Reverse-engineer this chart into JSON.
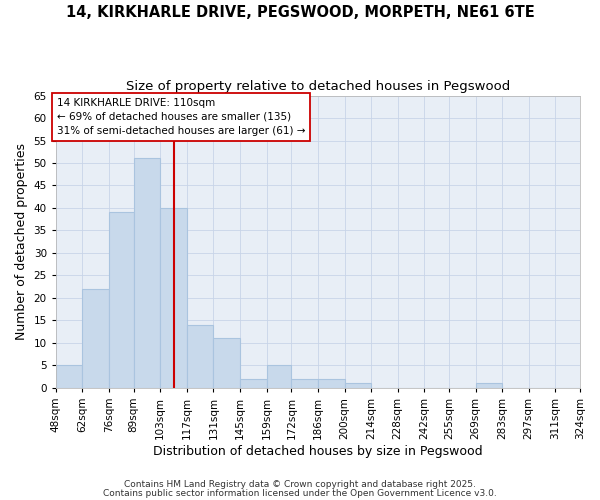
{
  "title_line1": "14, KIRKHARLE DRIVE, PEGSWOOD, MORPETH, NE61 6TE",
  "title_line2": "Size of property relative to detached houses in Pegswood",
  "bin_labels": [
    "48sqm",
    "62sqm",
    "76sqm",
    "89sqm",
    "103sqm",
    "117sqm",
    "131sqm",
    "145sqm",
    "159sqm",
    "172sqm",
    "186sqm",
    "200sqm",
    "214sqm",
    "228sqm",
    "242sqm",
    "255sqm",
    "269sqm",
    "283sqm",
    "297sqm",
    "311sqm",
    "324sqm"
  ],
  "bin_edges": [
    48,
    62,
    76,
    89,
    103,
    117,
    131,
    145,
    159,
    172,
    186,
    200,
    214,
    228,
    242,
    255,
    269,
    283,
    297,
    311,
    324
  ],
  "bar_heights": [
    5,
    22,
    39,
    51,
    40,
    14,
    11,
    2,
    5,
    2,
    2,
    1,
    0,
    0,
    0,
    0,
    1,
    0,
    0,
    0
  ],
  "bar_color": "#c8d9eb",
  "bar_edge_color": "#aac4df",
  "vline_x": 110,
  "vline_color": "#cc0000",
  "annotation_text": "14 KIRKHARLE DRIVE: 110sqm\n← 69% of detached houses are smaller (135)\n31% of semi-detached houses are larger (61) →",
  "annotation_box_color": "#ffffff",
  "annotation_box_edge": "#cc0000",
  "xlabel": "Distribution of detached houses by size in Pegswood",
  "ylabel": "Number of detached properties",
  "footer1": "Contains HM Land Registry data © Crown copyright and database right 2025.",
  "footer2": "Contains public sector information licensed under the Open Government Licence v3.0.",
  "ylim": [
    0,
    65
  ],
  "yticks": [
    0,
    5,
    10,
    15,
    20,
    25,
    30,
    35,
    40,
    45,
    50,
    55,
    60,
    65
  ],
  "background_color": "#e8eef6",
  "grid_color": "#c8d4e8",
  "title_fontsize": 10.5,
  "subtitle_fontsize": 9.5,
  "axis_label_fontsize": 9,
  "tick_fontsize": 7.5,
  "footer_fontsize": 6.5
}
